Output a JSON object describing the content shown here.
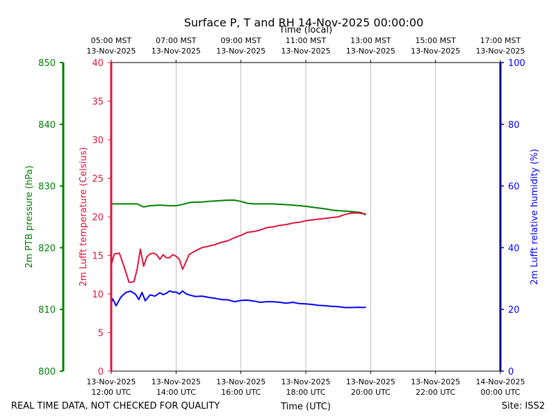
{
  "chart_data": {
    "type": "line",
    "title": "Surface P, T and RH 14-Nov-2025 00:00:00",
    "top_axis_label": "Time (local)",
    "xlabel": "Time (UTC)",
    "footer_left": "REAL TIME DATA, NOT CHECKED FOR QUALITY",
    "footer_right": "Site: ISS2",
    "grid": "vertical",
    "colors": {
      "pressure": "#008000",
      "temperature": "#dc143c",
      "humidity": "#0000ff"
    },
    "x_hours": [
      12,
      14,
      16,
      18,
      20,
      22,
      24
    ],
    "x_ticks_utc": [
      [
        "13-Nov-2025",
        "12:00 UTC"
      ],
      [
        "13-Nov-2025",
        "14:00 UTC"
      ],
      [
        "13-Nov-2025",
        "16:00 UTC"
      ],
      [
        "13-Nov-2025",
        "18:00 UTC"
      ],
      [
        "13-Nov-2025",
        "20:00 UTC"
      ],
      [
        "13-Nov-2025",
        "22:00 UTC"
      ],
      [
        "14-Nov-2025",
        "00:00 UTC"
      ]
    ],
    "x_ticks_local": [
      [
        "05:00 MST",
        "13-Nov-2025"
      ],
      [
        "07:00 MST",
        "13-Nov-2025"
      ],
      [
        "09:00 MST",
        "13-Nov-2025"
      ],
      [
        "11:00 MST",
        "13-Nov-2025"
      ],
      [
        "13:00 MST",
        "13-Nov-2025"
      ],
      [
        "15:00 MST",
        "13-Nov-2025"
      ],
      [
        "17:00 MST",
        "13-Nov-2025"
      ]
    ],
    "axes": {
      "pressure": {
        "label": "2m PTB pressure (hPa)",
        "ylim": [
          800,
          850
        ],
        "ticks": [
          800,
          810,
          820,
          830,
          840,
          850
        ]
      },
      "temperature": {
        "label": "2m Lufft temperature (Celsius)",
        "ylim": [
          0,
          40
        ],
        "ticks": [
          0,
          5,
          10,
          15,
          20,
          25,
          30,
          35,
          40
        ]
      },
      "humidity": {
        "label": "2m Lufft relative humidity (%)",
        "ylim": [
          0,
          100
        ],
        "ticks": [
          0,
          20,
          40,
          60,
          80,
          100
        ]
      }
    },
    "series": [
      {
        "name": "pressure",
        "axis": "pressure",
        "x": [
          12.0,
          12.5,
          12.8,
          13.0,
          13.2,
          13.5,
          13.8,
          14.0,
          14.2,
          14.4,
          14.6,
          14.8,
          15.0,
          15.3,
          15.6,
          15.8,
          16.0,
          16.2,
          16.4,
          16.6,
          16.8,
          17.0,
          17.3,
          17.6,
          17.8,
          18.0,
          18.3,
          18.6,
          18.8,
          19.0,
          19.3,
          19.5,
          19.7,
          19.85
        ],
        "y": [
          827.1,
          827.1,
          827.1,
          826.6,
          826.8,
          826.9,
          826.8,
          826.8,
          827.0,
          827.3,
          827.4,
          827.4,
          827.5,
          827.6,
          827.7,
          827.7,
          827.5,
          827.2,
          827.1,
          827.1,
          827.1,
          827.1,
          827.0,
          826.9,
          826.8,
          826.7,
          826.5,
          826.3,
          826.1,
          826.0,
          825.9,
          825.8,
          825.7,
          825.3
        ]
      },
      {
        "name": "temperature",
        "axis": "temperature",
        "x": [
          12.0,
          12.1,
          12.25,
          12.4,
          12.55,
          12.7,
          12.8,
          12.9,
          13.0,
          13.1,
          13.2,
          13.3,
          13.4,
          13.5,
          13.6,
          13.7,
          13.8,
          13.9,
          14.0,
          14.1,
          14.2,
          14.3,
          14.4,
          14.6,
          14.8,
          15.0,
          15.2,
          15.4,
          15.6,
          15.8,
          16.0,
          16.2,
          16.4,
          16.6,
          16.8,
          17.0,
          17.2,
          17.4,
          17.6,
          17.8,
          18.0,
          18.2,
          18.4,
          18.6,
          18.8,
          19.0,
          19.2,
          19.4,
          19.6,
          19.85
        ],
        "y": [
          13.8,
          15.2,
          15.3,
          13.5,
          11.5,
          11.6,
          13.2,
          15.8,
          13.6,
          14.8,
          15.2,
          15.3,
          15.1,
          14.5,
          15.1,
          14.7,
          14.7,
          15.1,
          14.9,
          14.5,
          13.2,
          14.1,
          15.1,
          15.6,
          16.0,
          16.2,
          16.4,
          16.7,
          16.9,
          17.3,
          17.6,
          18.0,
          18.1,
          18.3,
          18.6,
          18.7,
          18.9,
          19.0,
          19.2,
          19.3,
          19.5,
          19.6,
          19.7,
          19.8,
          19.9,
          20.0,
          20.3,
          20.5,
          20.5,
          20.4
        ]
      },
      {
        "name": "humidity",
        "axis": "humidity",
        "x": [
          12.0,
          12.05,
          12.15,
          12.3,
          12.45,
          12.6,
          12.75,
          12.85,
          12.95,
          13.05,
          13.2,
          13.35,
          13.5,
          13.6,
          13.7,
          13.8,
          13.9,
          14.0,
          14.1,
          14.2,
          14.3,
          14.4,
          14.6,
          14.8,
          15.0,
          15.2,
          15.4,
          15.6,
          15.8,
          16.0,
          16.2,
          16.4,
          16.6,
          16.8,
          17.0,
          17.2,
          17.4,
          17.6,
          17.8,
          18.0,
          18.2,
          18.4,
          18.6,
          18.8,
          19.0,
          19.2,
          19.4,
          19.6,
          19.8,
          19.85
        ],
        "y": [
          22.0,
          23.4,
          21.2,
          24.0,
          25.5,
          25.9,
          24.9,
          23.2,
          25.5,
          22.8,
          24.7,
          24.3,
          25.4,
          24.8,
          25.2,
          26.0,
          25.6,
          25.6,
          25.0,
          26.0,
          25.1,
          24.7,
          24.2,
          24.3,
          23.9,
          23.6,
          23.2,
          23.1,
          22.5,
          22.9,
          23.0,
          22.7,
          22.3,
          22.5,
          22.5,
          22.3,
          22.0,
          22.3,
          21.9,
          21.8,
          21.6,
          21.3,
          21.2,
          21.0,
          20.9,
          20.6,
          20.6,
          20.7,
          20.6,
          20.8
        ]
      }
    ]
  }
}
